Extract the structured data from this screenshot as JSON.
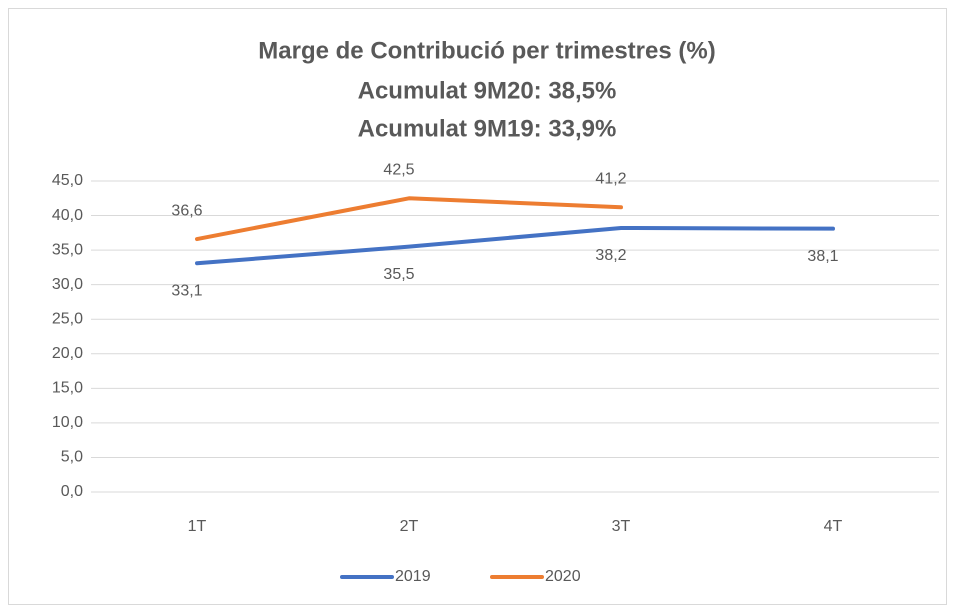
{
  "chart_data": {
    "type": "line",
    "title": "Marge de Contribució per trimestres (%)",
    "subtitle": [
      "Acumulat 9M20: 38,5%",
      "Acumulat 9M19: 33,9%"
    ],
    "categories": [
      "1T",
      "2T",
      "3T",
      "4T"
    ],
    "series": [
      {
        "name": "2019",
        "color": "#4472c4",
        "values": [
          33.1,
          35.5,
          38.2,
          38.1
        ],
        "value_labels": [
          "33,1",
          "35,5",
          "38,2",
          "38,1"
        ]
      },
      {
        "name": "2020",
        "color": "#ed7d31",
        "values": [
          36.6,
          42.5,
          41.2,
          null
        ],
        "value_labels": [
          "36,6",
          "42,5",
          "41,2",
          null
        ]
      }
    ],
    "ylim": [
      0,
      45
    ],
    "yticks": [
      {
        "value": 0,
        "label": "0,0"
      },
      {
        "value": 5,
        "label": "5,0"
      },
      {
        "value": 10,
        "label": "10,0"
      },
      {
        "value": 15,
        "label": "15,0"
      },
      {
        "value": 20,
        "label": "20,0"
      },
      {
        "value": 25,
        "label": "25,0"
      },
      {
        "value": 30,
        "label": "30,0"
      },
      {
        "value": 35,
        "label": "35,0"
      },
      {
        "value": 40,
        "label": "40,0"
      },
      {
        "value": 45,
        "label": "45,0"
      }
    ],
    "grid": true,
    "legend": "bottom"
  }
}
